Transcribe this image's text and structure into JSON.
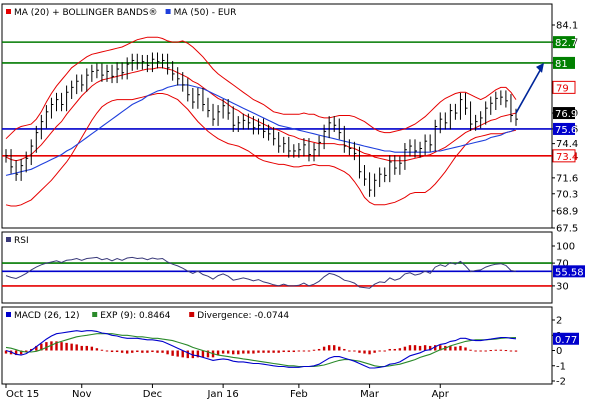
{
  "colors": {
    "price": "#000000",
    "ma20": "#e60000",
    "bands": "#e60000",
    "ma50": "#1f3fdc",
    "support": "#0000cc",
    "resistance_red": "#e60000",
    "resistance_green": "#007a00",
    "arrow": "#00269a",
    "rsi": "#3a3a7a",
    "macd": "#0000cc",
    "exp": "#2a8a2a",
    "divergence": "#cc0000",
    "panel_border": "#000000",
    "badge_blue": "#0000cc",
    "badge_green": "#008000",
    "badge_red": "#e60000",
    "badge_black": "#000000"
  },
  "chart_data": [
    {
      "type": "line",
      "panel": "price",
      "legend": [
        {
          "label": "MA (20) + BOLLINGER BANDS®",
          "color": "#e60000"
        },
        {
          "label": "MA (50) - EUR",
          "color": "#1f3fdc"
        }
      ],
      "x_ticks": [
        "Oct 15",
        "Nov",
        "Dec",
        "Jan 16",
        "Feb",
        "Mar",
        "Apr"
      ],
      "y_ticks": [
        84.1,
        82.7,
        81.0,
        79.0,
        76.9,
        75.6,
        74.4,
        73.4,
        71.6,
        70.3,
        68.9,
        67.5
      ],
      "ylim": [
        67.5,
        84.1
      ],
      "horizontal_levels": [
        {
          "value": 82.7,
          "color": "#007a00"
        },
        {
          "value": 81.0,
          "color": "#007a00"
        },
        {
          "value": 75.6,
          "color": "#0000cc"
        },
        {
          "value": 73.4,
          "color": "#e60000"
        }
      ],
      "value_badges": [
        {
          "value": 82.7,
          "label": "82.7",
          "style": "green"
        },
        {
          "value": 81.0,
          "label": "81",
          "style": "green"
        },
        {
          "value": 79.0,
          "label": "79",
          "style": "red"
        },
        {
          "value": 76.9,
          "label": "76.9",
          "style": "black"
        },
        {
          "value": 75.6,
          "label": "75.6",
          "style": "blue"
        },
        {
          "value": 73.4,
          "label": "73.4",
          "style": "red"
        }
      ],
      "price_close": [
        73.4,
        72.5,
        71.9,
        72.6,
        73.2,
        74.2,
        75.3,
        76.2,
        77.0,
        77.6,
        78.0,
        77.6,
        78.6,
        79.0,
        79.5,
        79.2,
        80.0,
        80.3,
        80.4,
        80.0,
        80.3,
        79.9,
        80.5,
        80.2,
        80.9,
        81.2,
        81.0,
        81.1,
        80.8,
        81.3,
        81.1,
        81.2,
        80.6,
        80.1,
        79.7,
        79.2,
        78.4,
        77.8,
        78.4,
        77.6,
        77.1,
        76.4,
        77.0,
        77.5,
        76.9,
        75.9,
        76.1,
        76.3,
        76.1,
        75.7,
        75.9,
        75.4,
        75.2,
        74.8,
        74.2,
        74.4,
        73.8,
        73.8,
        73.9,
        74.3,
        73.5,
        73.9,
        74.5,
        75.4,
        76.1,
        75.9,
        75.3,
        74.2,
        74.0,
        73.6,
        72.1,
        71.5,
        70.6,
        71.4,
        71.9,
        71.8,
        72.9,
        72.4,
        72.8,
        73.9,
        74.2,
        73.8,
        74.0,
        74.6,
        74.3,
        75.8,
        76.4,
        76.1,
        77.1,
        76.9,
        78.0,
        77.3,
        76.0,
        76.2,
        76.5,
        77.3,
        77.7,
        78.1,
        78.2,
        77.9,
        76.7,
        76.4
      ],
      "ma20": [
        73.3,
        73.1,
        73.0,
        73.1,
        73.3,
        73.5,
        73.9,
        74.3,
        74.8,
        75.3,
        75.8,
        76.2,
        76.8,
        77.3,
        77.8,
        78.3,
        78.7,
        79.1,
        79.4,
        79.6,
        79.7,
        79.8,
        79.9,
        80.0,
        80.1,
        80.2,
        80.3,
        80.4,
        80.5,
        80.5,
        80.6,
        80.6,
        80.5,
        80.4,
        80.2,
        80.0,
        79.8,
        79.5,
        79.3,
        79.0,
        78.7,
        78.4,
        78.1,
        77.9,
        77.6,
        77.3,
        77.1,
        76.8,
        76.6,
        76.4,
        76.2,
        76.0,
        75.8,
        75.6,
        75.5,
        75.3,
        75.1,
        75.0,
        74.8,
        74.7,
        74.6,
        74.5,
        74.4,
        74.4,
        74.4,
        74.4,
        74.3,
        74.3,
        74.1,
        74.0,
        73.8,
        73.6,
        73.5,
        73.3,
        73.2,
        73.1,
        73.0,
        73.0,
        73.0,
        73.0,
        73.1,
        73.2,
        73.3,
        73.4,
        73.5,
        73.7,
        73.9,
        74.1,
        74.4,
        74.7,
        75.0,
        75.3,
        75.5,
        75.7,
        75.9,
        76.1,
        76.3,
        76.4,
        76.6,
        76.7,
        76.8,
        76.9
      ],
      "bollinger_upper": [
        74.8,
        75.2,
        75.6,
        75.8,
        75.9,
        76.0,
        76.4,
        77.0,
        77.8,
        78.5,
        79.1,
        79.6,
        80.1,
        80.6,
        80.9,
        81.2,
        81.5,
        81.7,
        81.8,
        81.9,
        82.0,
        82.1,
        82.2,
        82.3,
        82.5,
        82.7,
        82.9,
        83.0,
        83.1,
        83.1,
        83.1,
        83.0,
        82.8,
        82.7,
        82.7,
        82.8,
        82.6,
        82.3,
        81.9,
        81.5,
        81.0,
        80.5,
        80.1,
        79.8,
        79.5,
        79.2,
        78.9,
        78.6,
        78.3,
        78.0,
        77.8,
        77.6,
        77.3,
        77.0,
        76.9,
        76.8,
        76.8,
        76.8,
        76.8,
        76.9,
        76.8,
        76.8,
        76.6,
        76.5,
        76.5,
        76.6,
        76.7,
        76.7,
        76.7,
        76.6,
        76.4,
        76.2,
        75.9,
        75.6,
        75.4,
        75.3,
        75.3,
        75.4,
        75.5,
        75.6,
        75.8,
        76.0,
        76.3,
        76.6,
        77.0,
        77.4,
        77.8,
        78.1,
        78.3,
        78.5,
        78.6,
        78.6,
        78.4,
        78.2,
        78.0,
        78.2,
        78.5,
        78.8,
        79.0,
        79.0,
        78.6,
        78.0
      ],
      "bollinger_lower": [
        69.4,
        69.3,
        69.3,
        69.4,
        69.6,
        69.8,
        70.2,
        70.6,
        71.0,
        71.4,
        71.9,
        72.4,
        72.9,
        73.5,
        74.2,
        74.9,
        75.6,
        76.3,
        76.9,
        77.4,
        77.7,
        77.9,
        78.0,
        78.0,
        78.0,
        78.0,
        78.1,
        78.2,
        78.3,
        78.4,
        78.5,
        78.5,
        78.4,
        78.2,
        78.0,
        77.6,
        77.2,
        76.7,
        76.2,
        75.8,
        75.4,
        75.1,
        74.8,
        74.6,
        74.4,
        74.3,
        74.2,
        74.0,
        73.8,
        73.5,
        73.2,
        73.0,
        72.9,
        72.8,
        72.7,
        72.7,
        72.6,
        72.5,
        72.5,
        72.6,
        72.6,
        72.7,
        72.6,
        72.6,
        72.6,
        72.5,
        72.3,
        72.1,
        71.8,
        71.3,
        70.7,
        70.0,
        69.6,
        69.4,
        69.4,
        69.4,
        69.5,
        69.6,
        69.8,
        70.0,
        70.3,
        70.4,
        70.4,
        70.4,
        70.7,
        71.1,
        71.6,
        72.1,
        72.7,
        73.3,
        73.8,
        74.3,
        74.7,
        74.9,
        75.0,
        75.1,
        75.2,
        75.2,
        75.2,
        75.3,
        75.4,
        75.5
      ],
      "ma50": [
        71.8,
        71.9,
        72.0,
        72.1,
        72.2,
        72.3,
        72.5,
        72.7,
        72.9,
        73.1,
        73.3,
        73.5,
        73.8,
        74.0,
        74.3,
        74.6,
        74.9,
        75.2,
        75.5,
        75.8,
        76.1,
        76.4,
        76.7,
        77.0,
        77.3,
        77.6,
        77.8,
        78.0,
        78.3,
        78.5,
        78.7,
        78.8,
        79.0,
        79.1,
        79.2,
        79.2,
        79.2,
        79.1,
        79.0,
        78.9,
        78.7,
        78.5,
        78.3,
        78.1,
        77.9,
        77.7,
        77.5,
        77.3,
        77.1,
        76.9,
        76.7,
        76.5,
        76.3,
        76.1,
        75.9,
        75.8,
        75.7,
        75.6,
        75.5,
        75.4,
        75.3,
        75.2,
        75.1,
        75.0,
        74.9,
        74.8,
        74.7,
        74.6,
        74.5,
        74.4,
        74.3,
        74.2,
        74.1,
        74.0,
        73.9,
        73.8,
        73.8,
        73.7,
        73.7,
        73.7,
        73.7,
        73.7,
        73.7,
        73.7,
        73.7,
        73.8,
        73.8,
        73.9,
        74.0,
        74.1,
        74.2,
        74.3,
        74.4,
        74.5,
        74.6,
        74.7,
        74.9,
        75.0,
        75.1,
        75.3,
        75.4,
        75.6
      ],
      "projection_arrow": {
        "from": 76.9,
        "to": 81.0
      }
    },
    {
      "type": "line",
      "panel": "rsi",
      "legend": [
        {
          "label": "RSI",
          "color": "#3a3a7a"
        }
      ],
      "y_ticks": [
        100,
        70,
        55.58,
        30
      ],
      "ylim": [
        0,
        100
      ],
      "levels": [
        {
          "value": 70,
          "color": "#007a00"
        },
        {
          "value": 55.58,
          "color": "#0000cc"
        },
        {
          "value": 30,
          "color": "#e60000"
        }
      ],
      "value_badge": {
        "label": "55.58",
        "value": 55.58
      },
      "values": [
        48,
        45,
        43,
        47,
        52,
        58,
        63,
        67,
        70,
        72,
        74,
        71,
        75,
        76,
        78,
        75,
        78,
        79,
        80,
        76,
        78,
        74,
        78,
        75,
        79,
        80,
        78,
        79,
        76,
        79,
        77,
        78,
        72,
        68,
        65,
        61,
        56,
        52,
        56,
        50,
        47,
        42,
        48,
        51,
        47,
        40,
        42,
        44,
        42,
        39,
        41,
        37,
        35,
        32,
        30,
        33,
        30,
        30,
        31,
        35,
        30,
        33,
        38,
        46,
        52,
        50,
        46,
        40,
        38,
        35,
        28,
        27,
        26,
        33,
        37,
        36,
        44,
        40,
        43,
        51,
        53,
        49,
        51,
        56,
        52,
        63,
        67,
        64,
        71,
        68,
        73,
        65,
        55,
        57,
        58,
        63,
        66,
        68,
        69,
        66,
        57,
        55.58
      ]
    },
    {
      "type": "bar",
      "panel": "macd",
      "legend": [
        {
          "label": "MACD (26, 12)",
          "color": "#0000cc"
        },
        {
          "label": "EXP (9): 0.8464",
          "color": "#2a8a2a"
        },
        {
          "label": "Divergence: -0.0744",
          "color": "#cc0000"
        }
      ],
      "y_ticks": [
        2,
        1,
        0,
        -1,
        -2
      ],
      "ylim": [
        -2,
        2
      ],
      "value_badge": {
        "label": "0.77",
        "value": 0.77
      },
      "macd": [
        0.0,
        -0.1,
        -0.25,
        -0.3,
        -0.2,
        0.0,
        0.25,
        0.5,
        0.75,
        0.95,
        1.1,
        1.15,
        1.2,
        1.25,
        1.3,
        1.25,
        1.3,
        1.3,
        1.25,
        1.15,
        1.1,
        1.0,
        0.95,
        0.85,
        0.8,
        0.8,
        0.8,
        0.75,
        0.7,
        0.7,
        0.65,
        0.6,
        0.45,
        0.3,
        0.15,
        0.0,
        -0.15,
        -0.3,
        -0.35,
        -0.45,
        -0.55,
        -0.65,
        -0.6,
        -0.55,
        -0.6,
        -0.7,
        -0.75,
        -0.75,
        -0.8,
        -0.85,
        -0.85,
        -0.9,
        -0.95,
        -1.0,
        -1.05,
        -1.05,
        -1.1,
        -1.1,
        -1.1,
        -1.05,
        -1.05,
        -1.0,
        -0.9,
        -0.7,
        -0.5,
        -0.4,
        -0.4,
        -0.5,
        -0.6,
        -0.7,
        -0.85,
        -1.0,
        -1.15,
        -1.15,
        -1.1,
        -1.05,
        -0.9,
        -0.85,
        -0.75,
        -0.55,
        -0.35,
        -0.25,
        -0.15,
        0.0,
        0.05,
        0.25,
        0.4,
        0.45,
        0.6,
        0.65,
        0.8,
        0.8,
        0.7,
        0.65,
        0.65,
        0.7,
        0.75,
        0.8,
        0.85,
        0.85,
        0.8,
        0.77
      ],
      "exp": [
        0.2,
        0.15,
        0.05,
        -0.05,
        -0.1,
        -0.1,
        -0.05,
        0.05,
        0.2,
        0.35,
        0.5,
        0.6,
        0.7,
        0.8,
        0.9,
        0.95,
        1.0,
        1.05,
        1.1,
        1.1,
        1.1,
        1.1,
        1.05,
        1.0,
        1.0,
        0.95,
        0.9,
        0.9,
        0.85,
        0.8,
        0.8,
        0.75,
        0.7,
        0.65,
        0.55,
        0.45,
        0.35,
        0.2,
        0.1,
        0.0,
        -0.1,
        -0.2,
        -0.3,
        -0.35,
        -0.4,
        -0.45,
        -0.5,
        -0.55,
        -0.6,
        -0.65,
        -0.7,
        -0.75,
        -0.8,
        -0.85,
        -0.9,
        -0.95,
        -1.0,
        -1.0,
        -1.05,
        -1.05,
        -1.05,
        -1.05,
        -1.0,
        -0.95,
        -0.85,
        -0.75,
        -0.65,
        -0.6,
        -0.6,
        -0.65,
        -0.7,
        -0.8,
        -0.9,
        -1.0,
        -1.05,
        -1.05,
        -1.0,
        -0.95,
        -0.9,
        -0.8,
        -0.7,
        -0.6,
        -0.45,
        -0.35,
        -0.25,
        -0.1,
        0.05,
        0.15,
        0.3,
        0.4,
        0.5,
        0.6,
        0.65,
        0.7,
        0.7,
        0.7,
        0.72,
        0.75,
        0.8,
        0.82,
        0.84,
        0.8464
      ],
      "divergence": [
        -0.2,
        -0.25,
        -0.3,
        -0.25,
        -0.1,
        0.1,
        0.3,
        0.45,
        0.55,
        0.6,
        0.6,
        0.55,
        0.5,
        0.45,
        0.4,
        0.3,
        0.3,
        0.25,
        0.15,
        0.05,
        0.0,
        -0.1,
        -0.1,
        -0.15,
        -0.2,
        -0.15,
        -0.1,
        -0.15,
        -0.15,
        -0.1,
        -0.15,
        -0.15,
        -0.25,
        -0.35,
        -0.4,
        -0.45,
        -0.5,
        -0.5,
        -0.45,
        -0.45,
        -0.45,
        -0.45,
        -0.3,
        -0.2,
        -0.2,
        -0.25,
        -0.25,
        -0.2,
        -0.2,
        -0.2,
        -0.15,
        -0.15,
        -0.15,
        -0.15,
        -0.15,
        -0.1,
        -0.1,
        -0.1,
        -0.05,
        0.0,
        0.0,
        0.05,
        0.1,
        0.25,
        0.35,
        0.35,
        0.25,
        0.1,
        0.0,
        -0.05,
        -0.15,
        -0.2,
        -0.25,
        -0.15,
        -0.05,
        0.0,
        0.1,
        0.1,
        0.15,
        0.25,
        0.35,
        0.35,
        0.3,
        0.35,
        0.3,
        0.35,
        0.35,
        0.3,
        0.3,
        0.25,
        0.3,
        0.2,
        0.05,
        -0.05,
        -0.05,
        0.0,
        0.03,
        0.05,
        0.05,
        0.03,
        -0.04,
        -0.0744
      ]
    }
  ]
}
